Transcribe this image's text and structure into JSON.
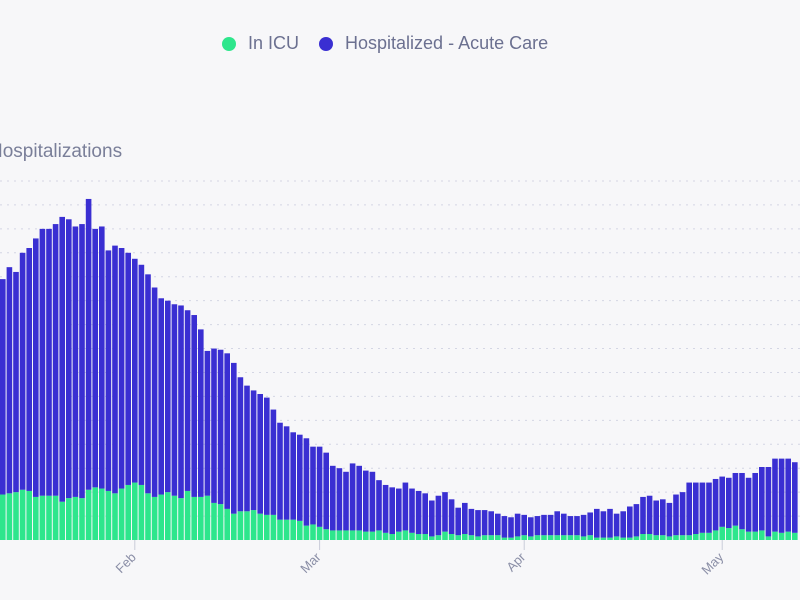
{
  "chart_data": {
    "type": "bar",
    "stacked": true,
    "title": "Hospitalizations",
    "legend_position": "top",
    "grid": true,
    "x_start": "Jan 12",
    "x_end": "May 12",
    "x_interval": "1 day",
    "x_tick_labels": [
      "Feb",
      "Mar",
      "Apr",
      "May"
    ],
    "ylim": [
      0,
      15
    ],
    "series": [
      {
        "name": "In ICU",
        "color": "#2ee68c",
        "values": [
          1.9,
          1.95,
          2.0,
          2.1,
          2.05,
          1.8,
          1.85,
          1.85,
          1.85,
          1.6,
          1.75,
          1.8,
          1.75,
          2.1,
          2.2,
          2.15,
          2.05,
          1.95,
          2.15,
          2.3,
          2.4,
          2.3,
          1.95,
          1.8,
          1.9,
          2.0,
          1.85,
          1.75,
          2.05,
          1.8,
          1.8,
          1.85,
          1.55,
          1.5,
          1.3,
          1.1,
          1.2,
          1.2,
          1.25,
          1.1,
          1.05,
          1.05,
          0.85,
          0.85,
          0.85,
          0.8,
          0.6,
          0.65,
          0.55,
          0.45,
          0.4,
          0.4,
          0.4,
          0.4,
          0.4,
          0.35,
          0.35,
          0.4,
          0.3,
          0.25,
          0.35,
          0.4,
          0.3,
          0.25,
          0.25,
          0.15,
          0.2,
          0.35,
          0.25,
          0.2,
          0.25,
          0.2,
          0.15,
          0.2,
          0.2,
          0.2,
          0.1,
          0.1,
          0.15,
          0.2,
          0.15,
          0.2,
          0.2,
          0.2,
          0.2,
          0.2,
          0.2,
          0.2,
          0.15,
          0.2,
          0.1,
          0.1,
          0.1,
          0.15,
          0.1,
          0.1,
          0.15,
          0.25,
          0.25,
          0.2,
          0.2,
          0.15,
          0.2,
          0.2,
          0.2,
          0.25,
          0.3,
          0.3,
          0.4,
          0.55,
          0.5,
          0.6,
          0.45,
          0.35,
          0.35,
          0.4,
          0.15,
          0.35,
          0.3,
          0.35,
          0.3
        ]
      },
      {
        "name": "Hospitalized - Acute Care",
        "color": "#3a2fd2",
        "values": [
          9.0,
          9.45,
          9.2,
          9.9,
          10.15,
          10.8,
          11.15,
          11.15,
          11.35,
          11.9,
          11.65,
          11.3,
          11.45,
          12.15,
          10.8,
          10.95,
          10.05,
          10.35,
          10.05,
          9.7,
          9.35,
          9.2,
          9.15,
          8.75,
          8.2,
          8.0,
          8.0,
          8.05,
          7.55,
          7.6,
          7.0,
          6.05,
          6.45,
          6.45,
          6.5,
          6.3,
          5.6,
          5.25,
          5.0,
          5.0,
          4.9,
          4.4,
          4.05,
          3.9,
          3.65,
          3.6,
          3.65,
          3.25,
          3.35,
          3.2,
          2.7,
          2.6,
          2.45,
          2.8,
          2.7,
          2.55,
          2.5,
          2.1,
          2.0,
          1.95,
          1.8,
          2.0,
          1.85,
          1.8,
          1.7,
          1.5,
          1.65,
          1.65,
          1.45,
          1.15,
          1.3,
          1.1,
          1.1,
          1.05,
          1.0,
          0.9,
          0.9,
          0.85,
          0.95,
          0.85,
          0.8,
          0.8,
          0.85,
          0.85,
          1.0,
          0.9,
          0.8,
          0.8,
          0.9,
          0.95,
          1.2,
          1.1,
          1.2,
          0.95,
          1.1,
          1.3,
          1.35,
          1.55,
          1.6,
          1.45,
          1.5,
          1.4,
          1.7,
          1.8,
          2.2,
          2.15,
          2.1,
          2.1,
          2.15,
          2.1,
          2.1,
          2.2,
          2.35,
          2.25,
          2.45,
          2.65,
          2.9,
          3.05,
          3.1,
          3.05,
          2.95
        ]
      }
    ]
  }
}
